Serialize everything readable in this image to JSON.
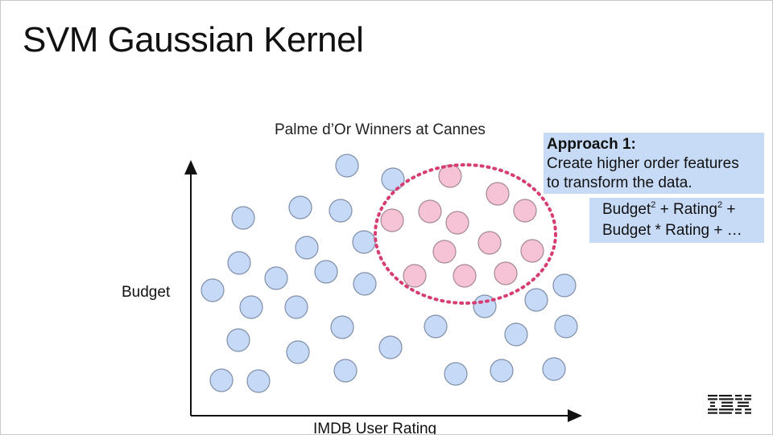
{
  "slide": {
    "title": "SVM Gaussian Kernel"
  },
  "chart_data": {
    "type": "scatter",
    "title": "Palme d’Or Winners at Cannes",
    "xlabel": "IMDB User Rating",
    "ylabel": "Budget",
    "series": [
      {
        "color": "#c6d9f6",
        "stroke": "#7f8fa8"
      },
      {
        "color": "#f6c3d6",
        "stroke": "#a58894"
      }
    ],
    "boundary": {
      "shape": "dotted-ellipse",
      "color": "#d63e72"
    }
  },
  "approach": {
    "heading": "Approach 1:",
    "line1": "Create higher order features",
    "line2": "to transform the data."
  },
  "formula": {
    "t1": "Budget",
    "sup1": "2",
    "t2": " + Rating",
    "sup2": "2",
    "t3": " +",
    "line2": "Budget * Rating + …"
  },
  "logo": {
    "text": "IBM"
  }
}
